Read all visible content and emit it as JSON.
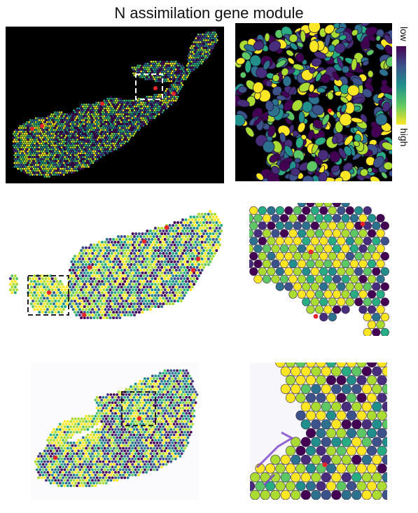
{
  "title": "N assimilation gene module",
  "colorbar": {
    "low_label": "low",
    "high_label": "high"
  },
  "colors": {
    "viridis": [
      "#440154",
      "#472d7b",
      "#3b528b",
      "#2c728e",
      "#21908c",
      "#27ad81",
      "#5dc863",
      "#aadc32",
      "#fde725"
    ],
    "marker": "#e8252b",
    "dark_background": "#000000"
  }
}
